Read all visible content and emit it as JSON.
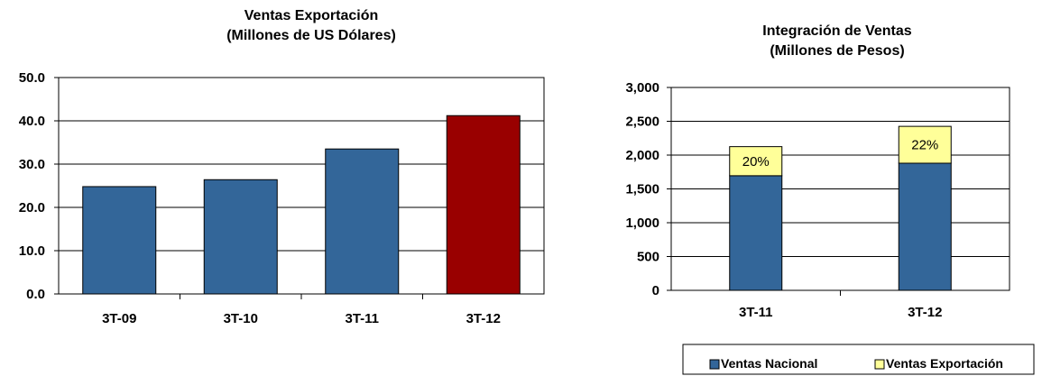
{
  "chart_data": [
    {
      "type": "bar",
      "title": "Ventas Exportación",
      "subtitle": "(Millones de US Dólares)",
      "categories": [
        "3T-09",
        "3T-10",
        "3T-11",
        "3T-12"
      ],
      "values": [
        24.8,
        26.4,
        33.5,
        41.2
      ],
      "colors": [
        "#336699",
        "#336699",
        "#336699",
        "#990000"
      ],
      "ylim": [
        0,
        50
      ],
      "yticks": [
        "0.0",
        "10.0",
        "20.0",
        "30.0",
        "40.0",
        "50.0"
      ],
      "grid": true
    },
    {
      "type": "bar",
      "stacked": true,
      "title": "Integración de Ventas",
      "subtitle": "(Millones de Pesos)",
      "categories": [
        "3T-11",
        "3T-12"
      ],
      "series": [
        {
          "name": "Ventas Nacional",
          "values": [
            1695,
            1880
          ],
          "color": "#336699"
        },
        {
          "name": "Ventas Exportación",
          "values": [
            430,
            545
          ],
          "color": "#FFFF99",
          "labels": [
            "20%",
            "22%"
          ]
        }
      ],
      "ylim": [
        0,
        3000
      ],
      "yticks": [
        "0",
        "500",
        "1,000",
        "1,500",
        "2,000",
        "2,500",
        "3,000"
      ],
      "grid": true,
      "legend": "bottom"
    }
  ]
}
